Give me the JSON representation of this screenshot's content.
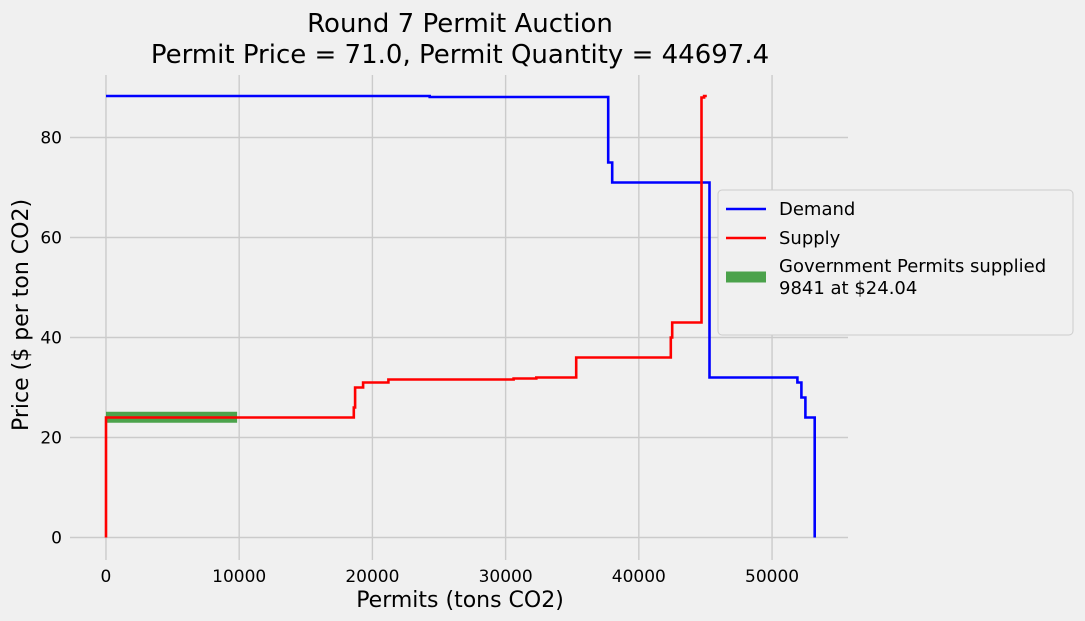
{
  "chart_data": {
    "type": "line",
    "title": "Round 7 Permit Auction",
    "subtitle": "Permit Price = 71.0,  Permit Quantity = 44697.4",
    "xlabel": "Permits (tons CO2)",
    "ylabel": "Price ($ per ton CO2)",
    "xlim": [
      -2700,
      55700
    ],
    "ylim": [
      -4.5,
      92.5
    ],
    "xticks": [
      0,
      10000,
      20000,
      30000,
      40000,
      50000
    ],
    "yticks": [
      0,
      20,
      40,
      60,
      80
    ],
    "grid": true,
    "legend_position": "right-outside",
    "series": [
      {
        "name": "Demand",
        "color": "#0000ff",
        "style": "step",
        "x": [
          0,
          24300,
          24300,
          37700,
          37700,
          38000,
          38000,
          45300,
          45300,
          51900,
          51900,
          52200,
          52200,
          52500,
          52500,
          53200,
          53200
        ],
        "y": [
          88.3,
          88.3,
          88.1,
          88.1,
          75,
          75,
          71,
          71,
          32,
          32,
          31,
          31,
          28,
          28,
          24,
          24,
          0
        ]
      },
      {
        "name": "Supply",
        "color": "#ff0000",
        "style": "step",
        "x": [
          0,
          0,
          18600,
          18600,
          18700,
          18700,
          19300,
          19300,
          21200,
          21200,
          30600,
          30600,
          32300,
          32300,
          35300,
          35300,
          42400,
          42400,
          42500,
          42500,
          44700,
          44700,
          44900,
          44900,
          45100
        ],
        "y": [
          0,
          24,
          24,
          26,
          26,
          30,
          30,
          31,
          31,
          31.6,
          31.6,
          31.8,
          31.8,
          32,
          32,
          36,
          36,
          40,
          40,
          43,
          43,
          88,
          88,
          88.3,
          88.3
        ]
      },
      {
        "name": "Government Permits supplied\n9841 at $24.04",
        "color": "#3a9a3a",
        "style": "thick",
        "x": [
          0,
          9841
        ],
        "y": [
          24.04,
          24.04
        ]
      }
    ]
  }
}
